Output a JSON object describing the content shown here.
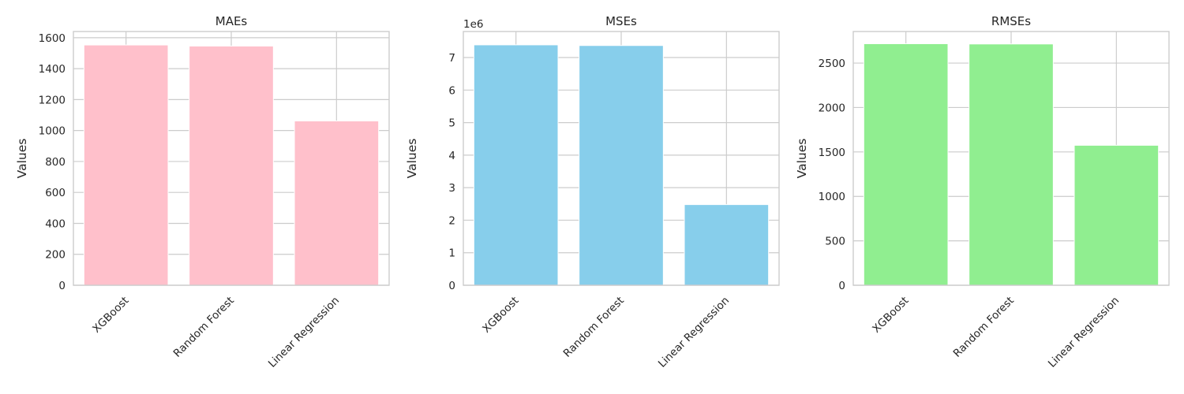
{
  "chart_data": [
    {
      "type": "bar",
      "title": "MAEs",
      "ylabel": "Values",
      "categories": [
        "XGBoost",
        "Random Forest",
        "Linear Regression"
      ],
      "values": [
        1553,
        1546,
        1062
      ],
      "ylim": [
        0,
        1640
      ],
      "yticks": [
        "0",
        "200",
        "400",
        "600",
        "800",
        "1000",
        "1200",
        "1400",
        "1600"
      ],
      "ytick_values": [
        0,
        200,
        400,
        600,
        800,
        1000,
        1200,
        1400,
        1600
      ],
      "scale": 1,
      "offset_text": "",
      "color": "#ffc0cb",
      "grid": true
    },
    {
      "type": "bar",
      "title": "MSEs",
      "ylabel": "Values",
      "categories": [
        "XGBoost",
        "Random Forest",
        "Linear Regression"
      ],
      "values": [
        7390000,
        7370000,
        2480000
      ],
      "ylim": [
        0,
        7800000
      ],
      "yticks": [
        "0",
        "1",
        "2",
        "3",
        "4",
        "5",
        "6",
        "7"
      ],
      "ytick_values": [
        0,
        1000000,
        2000000,
        3000000,
        4000000,
        5000000,
        6000000,
        7000000
      ],
      "scale": 1000000,
      "offset_text": "1e6",
      "color": "#87ceeb",
      "grid": true
    },
    {
      "type": "bar",
      "title": "RMSEs",
      "ylabel": "Values",
      "categories": [
        "XGBoost",
        "Random Forest",
        "Linear Regression"
      ],
      "values": [
        2718,
        2715,
        1575
      ],
      "ylim": [
        0,
        2855
      ],
      "yticks": [
        "0",
        "500",
        "1000",
        "1500",
        "2000",
        "2500"
      ],
      "ytick_values": [
        0,
        500,
        1000,
        1500,
        2000,
        2500
      ],
      "scale": 1,
      "offset_text": "",
      "color": "#90ee90",
      "grid": true
    }
  ]
}
